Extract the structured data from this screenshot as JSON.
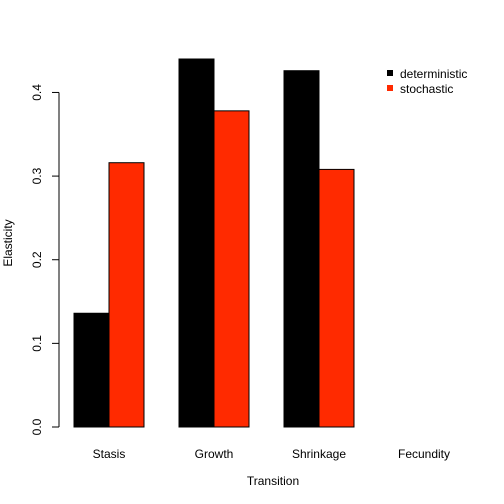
{
  "chart_data": {
    "type": "bar",
    "title": "",
    "xlabel": "Transition",
    "ylabel": "Elasticity",
    "categories": [
      "Stasis",
      "Growth",
      "Shrinkage",
      "Fecundity"
    ],
    "series": [
      {
        "name": "deterministic",
        "color": "#000000",
        "values": [
          0.136,
          0.44,
          0.426,
          0.0
        ]
      },
      {
        "name": "stochastic",
        "color": "#ff2a00",
        "values": [
          0.316,
          0.378,
          0.308,
          0.0
        ]
      }
    ],
    "ylim": [
      0,
      0.44
    ],
    "yticks": [
      0.0,
      0.1,
      0.2,
      0.3,
      0.4
    ],
    "ytick_labels": [
      "0.0",
      "0.1",
      "0.2",
      "0.3",
      "0.4"
    ],
    "grid": false,
    "legend_position": "top-right"
  }
}
